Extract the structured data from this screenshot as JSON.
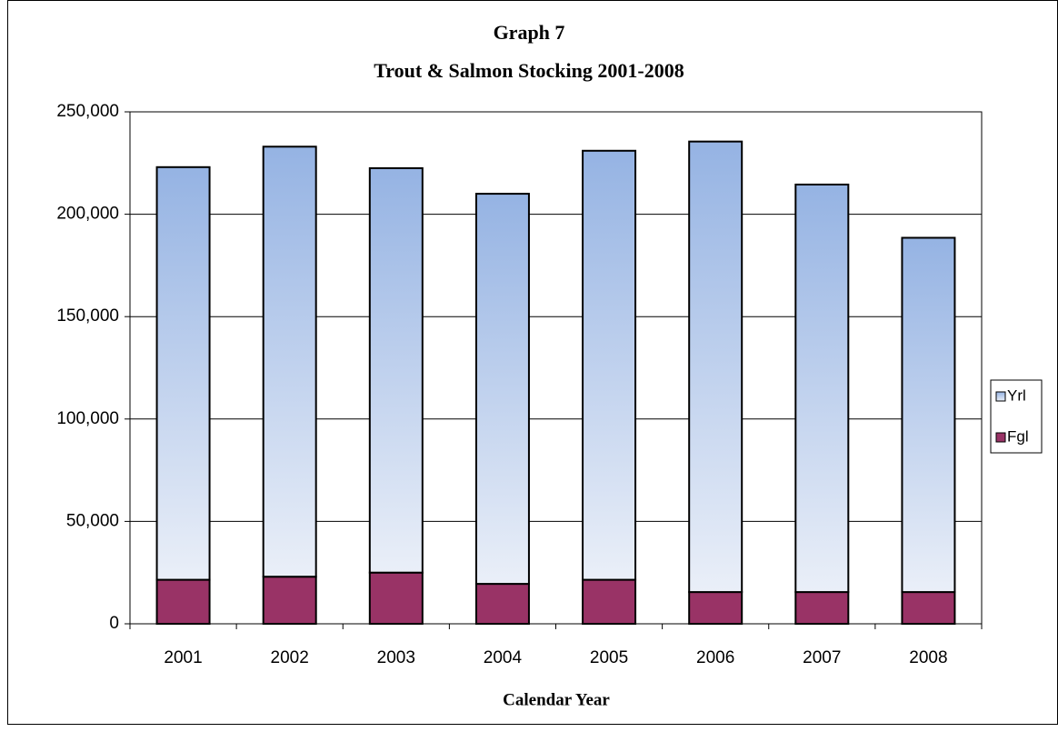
{
  "chart_data": {
    "type": "stacked-bar",
    "title": "Graph 7",
    "subtitle": "Trout & Salmon Stocking 2001-2008",
    "x_label": "Calendar Year",
    "categories": [
      "2001",
      "2002",
      "2003",
      "2004",
      "2005",
      "2006",
      "2007",
      "2008"
    ],
    "series": [
      {
        "name": "Fgl",
        "color": "#993366",
        "values": [
          21500,
          23000,
          25000,
          19500,
          21500,
          15500,
          15500,
          15500
        ]
      },
      {
        "name": "Yrl",
        "color": "#95b3e3",
        "values": [
          201500,
          210000,
          197500,
          190500,
          209500,
          220000,
          199000,
          173000
        ]
      }
    ],
    "ylim": [
      0,
      250000
    ],
    "yticks": [
      0,
      {
        "value": 50000,
        "label": "50,000"
      },
      {
        "value": 100000,
        "label": "100,000"
      },
      {
        "value": 150000,
        "label": "150,000"
      },
      {
        "value": 200000,
        "label": "200,000"
      },
      {
        "value": 250000,
        "label": "250,000"
      }
    ],
    "grid": true,
    "legend": "right"
  }
}
